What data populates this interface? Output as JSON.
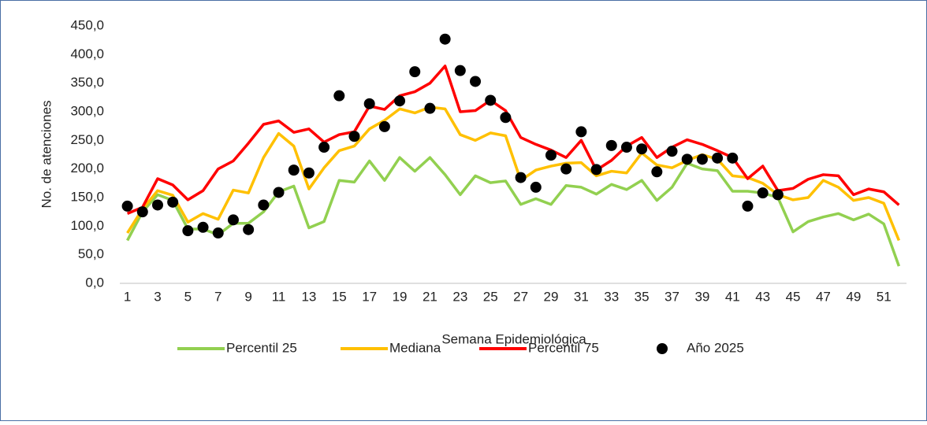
{
  "chart_data": {
    "type": "line",
    "x_label": "Semana Epidemiológica",
    "y_label": "No. de atenciones",
    "categories": [
      "1",
      null,
      "3",
      null,
      "5",
      null,
      "7",
      null,
      "9",
      null,
      "11",
      null,
      "13",
      null,
      "15",
      null,
      "17",
      null,
      "19",
      null,
      "21",
      null,
      "23",
      null,
      "25",
      null,
      "27",
      null,
      "29",
      null,
      "31",
      null,
      "33",
      null,
      "35",
      null,
      "37",
      null,
      "39",
      null,
      "41",
      null,
      "43",
      null,
      "45",
      null,
      "47",
      null,
      "49",
      null,
      "51",
      null
    ],
    "ylim": [
      0,
      450
    ],
    "yticks": [
      {
        "value": 0,
        "label": "0,0"
      },
      {
        "value": 50,
        "label": "50,0"
      },
      {
        "value": 100,
        "label": "100,0"
      },
      {
        "value": 150,
        "label": "150,0"
      },
      {
        "value": 200,
        "label": "200,0"
      },
      {
        "value": 250,
        "label": "250,0"
      },
      {
        "value": 300,
        "label": "300,0"
      },
      {
        "value": 350,
        "label": "350,0"
      },
      {
        "value": 400,
        "label": "400,0"
      },
      {
        "value": 450,
        "label": "450,0"
      }
    ],
    "grid": false,
    "legend": "bottom",
    "series": [
      {
        "name": "Percentil 25",
        "type": "line",
        "color": "#92d050",
        "values": [
          75,
          125,
          155,
          145,
          95,
          95,
          85,
          105,
          105,
          125,
          160,
          170,
          97,
          108,
          180,
          177,
          214,
          180,
          220,
          196,
          220,
          190,
          155,
          188,
          176,
          179,
          138,
          148,
          138,
          171,
          168,
          156,
          173,
          164,
          180,
          145,
          168,
          210,
          200,
          197,
          161,
          161,
          158,
          150,
          90,
          108,
          116,
          122,
          111,
          121,
          104,
          30
        ]
      },
      {
        "name": "Mediana",
        "type": "line",
        "color": "#ffc000",
        "values": [
          88,
          130,
          162,
          154,
          107,
          122,
          112,
          163,
          158,
          220,
          262,
          240,
          165,
          202,
          232,
          240,
          270,
          285,
          305,
          298,
          308,
          305,
          260,
          250,
          263,
          258,
          180,
          198,
          205,
          210,
          211,
          188,
          196,
          193,
          228,
          207,
          202,
          215,
          225,
          217,
          188,
          185,
          175,
          155,
          146,
          150,
          180,
          168,
          145,
          150,
          140,
          75
        ]
      },
      {
        "name": "Percentil 75",
        "type": "line",
        "color": "#ff0000",
        "values": [
          122,
          133,
          183,
          172,
          146,
          162,
          200,
          214,
          245,
          278,
          284,
          264,
          270,
          247,
          260,
          265,
          310,
          304,
          328,
          335,
          350,
          380,
          300,
          302,
          320,
          302,
          255,
          243,
          233,
          220,
          250,
          198,
          215,
          240,
          255,
          220,
          238,
          251,
          243,
          232,
          220,
          183,
          205,
          162,
          166,
          182,
          190,
          188,
          155,
          165,
          160,
          137
        ]
      },
      {
        "name": "Año 2025",
        "type": "scatter",
        "color": "#000000",
        "values": [
          135,
          125,
          137,
          142,
          92,
          98,
          88,
          111,
          94,
          137,
          159,
          198,
          193,
          238,
          328,
          257,
          314,
          274,
          319,
          370,
          306,
          427,
          372,
          353,
          320,
          290,
          185,
          168,
          224,
          200,
          265,
          199,
          241,
          238,
          235,
          195,
          231,
          217,
          217,
          219,
          219,
          135,
          158,
          155,
          null,
          null,
          null,
          null,
          null,
          null,
          null,
          null
        ]
      }
    ]
  }
}
